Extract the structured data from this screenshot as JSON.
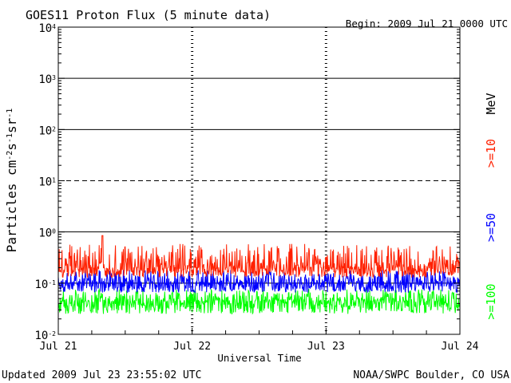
{
  "chart_data": {
    "type": "line",
    "title": "GOES11 Proton Flux (5 minute data)",
    "begin_label": "Begin: 2009 Jul 21 0000 UTC",
    "ylabel": "Particles cm-2s-1sr-1",
    "xlabel": "Universal Time",
    "y_scale": "log",
    "ylim": [
      0.01,
      10000
    ],
    "y_ticks": [
      {
        "base": "10",
        "exp": "4",
        "value": 10000
      },
      {
        "base": "10",
        "exp": "3",
        "value": 1000
      },
      {
        "base": "10",
        "exp": "2",
        "value": 100
      },
      {
        "base": "10",
        "exp": "1",
        "value": 10
      },
      {
        "base": "10",
        "exp": "0",
        "value": 1
      },
      {
        "base": "10",
        "exp": "-1",
        "value": 0.1
      },
      {
        "base": "10",
        "exp": "-2",
        "value": 0.01
      }
    ],
    "x_ticks": [
      "Jul 21",
      "Jul 22",
      "Jul 23",
      "Jul 24"
    ],
    "xlim_days": [
      0,
      3
    ],
    "threshold_lines": [
      {
        "value": 1000,
        "style": "solid"
      },
      {
        "value": 100,
        "style": "solid"
      },
      {
        "value": 10,
        "style": "dashed"
      },
      {
        "value": 1,
        "style": "solid"
      },
      {
        "value": 0.1,
        "style": "solid"
      }
    ],
    "grid": "dashed verticals at day boundaries",
    "legend_placement": "right, vertical",
    "series": [
      {
        "name": ">=10",
        "color": "#ff2000",
        "base_value": 0.2,
        "min": 0.13,
        "max": 0.85,
        "spike_day": 0.33,
        "spike_value": 0.85
      },
      {
        "name": ">=50",
        "color": "#0000ff",
        "base_value": 0.1,
        "min": 0.065,
        "max": 0.22
      },
      {
        "name": ">=100",
        "color": "#00ff00",
        "base_value": 0.045,
        "min": 0.025,
        "max": 0.09
      }
    ],
    "legend_unit": "MeV",
    "updated": "Updated 2009 Jul 23 23:55:02 UTC",
    "source": "NOAA/SWPC Boulder, CO USA"
  }
}
